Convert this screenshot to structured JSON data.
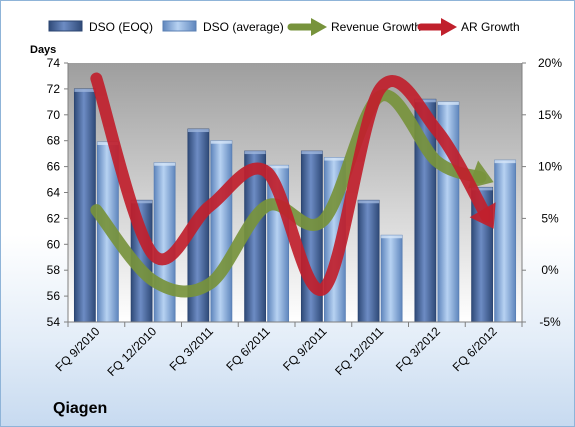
{
  "chart_data": {
    "type": "bar",
    "company": "Qiagen",
    "ylabel": "Days",
    "categories": [
      "FQ 9/2010",
      "FQ 12/2010",
      "FQ 3/2011",
      "FQ 6/2011",
      "FQ 9/2011",
      "FQ 12/2011",
      "FQ 3/2012",
      "FQ 6/2012"
    ],
    "ylim": [
      54,
      74
    ],
    "yticks": [
      54,
      56,
      58,
      60,
      62,
      64,
      66,
      68,
      70,
      72,
      74
    ],
    "y2lim": [
      -5,
      20
    ],
    "y2ticks": [
      -5,
      0,
      5,
      10,
      15,
      20
    ],
    "y2tick_labels": [
      "-5%",
      "0%",
      "5%",
      "10%",
      "15%",
      "20%"
    ],
    "legend_position": "top",
    "grid": false,
    "series": [
      {
        "name": "DSO (EOQ)",
        "kind": "bar",
        "axis": "left",
        "color": "#4f6fa8",
        "values": [
          72.0,
          63.4,
          68.9,
          67.2,
          67.2,
          63.4,
          71.2,
          64.4
        ]
      },
      {
        "name": "DSO (average)",
        "kind": "bar",
        "axis": "left",
        "color": "#8fb4e3",
        "values": [
          67.9,
          66.3,
          68.0,
          66.1,
          66.7,
          60.7,
          71.0,
          66.5
        ]
      },
      {
        "name": "Revenue Growth",
        "kind": "line",
        "axis": "right",
        "color": "#77933c",
        "values": [
          5.8,
          -1.0,
          -1.3,
          6.2,
          4.8,
          16.8,
          10.5,
          8.5
        ]
      },
      {
        "name": "AR Growth",
        "kind": "line",
        "axis": "right",
        "color": "#c0202c",
        "values": [
          18.5,
          1.5,
          6.2,
          9.5,
          -1.8,
          17.5,
          13.5,
          4.0
        ]
      }
    ]
  }
}
